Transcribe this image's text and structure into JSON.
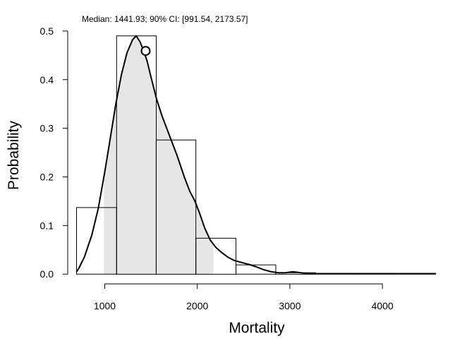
{
  "chart_data": {
    "type": "histogram",
    "annotation": "Median: 1441.93; 90% CI: [991.54, 2173.57]",
    "xlabel": "Mortality",
    "ylabel": "Probability",
    "xlim": [
      600,
      4700
    ],
    "ylim": [
      -0.02,
      0.51
    ],
    "x_ticks": [
      {
        "value": 1000,
        "label": "1000"
      },
      {
        "value": 2000,
        "label": "2000"
      },
      {
        "value": 3000,
        "label": "3000"
      },
      {
        "value": 4000,
        "label": "4000"
      }
    ],
    "y_ticks": [
      {
        "value": 0.0,
        "label": "0.0"
      },
      {
        "value": 0.1,
        "label": "0.1"
      },
      {
        "value": 0.2,
        "label": "0.2"
      },
      {
        "value": 0.3,
        "label": "0.3"
      },
      {
        "value": 0.4,
        "label": "0.4"
      },
      {
        "value": 0.5,
        "label": "0.5"
      }
    ],
    "bins": [
      {
        "x0": 695,
        "x1": 1128,
        "value": 0.137
      },
      {
        "x0": 1128,
        "x1": 1556,
        "value": 0.49
      },
      {
        "x0": 1556,
        "x1": 1985,
        "value": 0.276
      },
      {
        "x0": 1985,
        "x1": 2418,
        "value": 0.074
      },
      {
        "x0": 2418,
        "x1": 2848,
        "value": 0.019
      },
      {
        "x0": 2848,
        "x1": 3278,
        "value": 0.003
      },
      {
        "x0": 3278,
        "x1": 3710,
        "value": 0.001
      },
      {
        "x0": 3710,
        "x1": 4140,
        "value": 0.0005
      },
      {
        "x0": 4140,
        "x1": 4570,
        "value": 0.0005
      }
    ],
    "density": {
      "x": [
        695,
        720,
        780,
        860,
        930,
        1000,
        1060,
        1120,
        1180,
        1240,
        1300,
        1340,
        1380,
        1420,
        1460,
        1500,
        1560,
        1620,
        1700,
        1780,
        1860,
        1920,
        1970,
        2020,
        2080,
        2140,
        2200,
        2260,
        2330,
        2400,
        2480,
        2560,
        2640,
        2720,
        2800,
        2880,
        2950,
        3030,
        3080,
        3150,
        3300,
        3500,
        3700,
        3900,
        4100,
        4300,
        4500,
        4580
      ],
      "y": [
        0.005,
        0.012,
        0.035,
        0.08,
        0.135,
        0.21,
        0.28,
        0.35,
        0.41,
        0.455,
        0.482,
        0.49,
        0.478,
        0.46,
        0.437,
        0.405,
        0.36,
        0.325,
        0.285,
        0.245,
        0.2,
        0.17,
        0.152,
        0.128,
        0.095,
        0.07,
        0.055,
        0.045,
        0.035,
        0.028,
        0.024,
        0.02,
        0.015,
        0.009,
        0.005,
        0.003,
        0.003,
        0.005,
        0.004,
        0.002,
        0.001,
        0.001,
        0.001,
        0.001,
        0.001,
        0.001,
        0.001,
        0.001
      ]
    },
    "ci": [
      991.54,
      2173.57
    ],
    "median": {
      "x": 1441.93,
      "y": 0.459
    },
    "colors": {
      "shade": "#e6e6e6",
      "line": "#000000",
      "bar_fill": "none",
      "bar_stroke": "#000000"
    }
  }
}
